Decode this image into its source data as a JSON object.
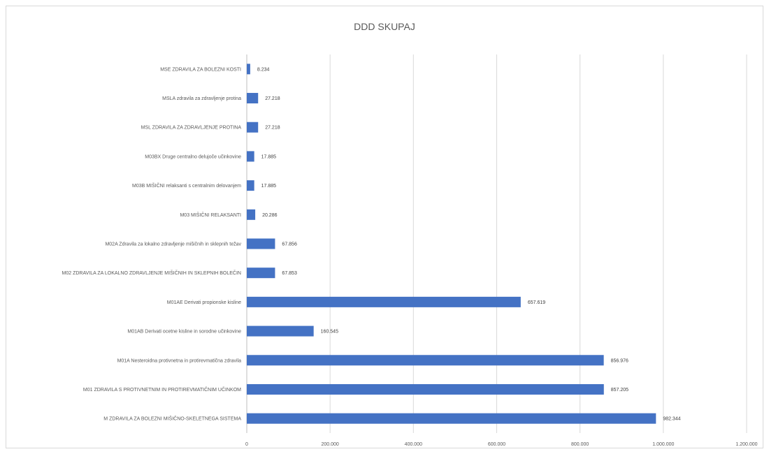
{
  "chart_data": {
    "type": "bar",
    "orientation": "horizontal",
    "title": "DDD SKUPAJ",
    "categories": [
      "MSE ZDRAVILA ZA BOLEZNI KOSTI",
      "MSLA zdravila za zdravljenje protina",
      "MSL ZDRAVILA ZA ZDRAVLJENJE PROTINA",
      "M03BX Druge centralno delujoče učinkovine",
      "M03B MIŠIČNI relaksanti s centralnim delovanjem",
      "M03 MIŠIČNI RELAKSANTI",
      "M02A Zdravila za lokalno zdravljenje mišičnih in sklepnih težav",
      "M02 ZDRAVILA ZA LOKALNO ZDRAVLJENJE MIŠIČNIH IN SKLEPNIH BOLEČIN",
      "M01AE Derivati propionske kisline",
      "M01AB Derivati ocetne kisline in sorodne učinkovine",
      "M01A Nesteroidna protivnetna in protirevmatična zdravila",
      "M01 ZDRAVILA S PROTIVNETNIM IN PROTIREVMATIČNIM UČINKOM",
      "M ZDRAVILA ZA BOLEZNI MIŠIČNO-SKELETNEGA SISTEMA"
    ],
    "values": [
      8.234,
      27.218,
      27.218,
      17.885,
      17.885,
      20.286,
      67.856,
      67.853,
      657.619,
      160.545,
      856.976,
      857.205,
      982.344
    ],
    "value_labels": [
      "8.234",
      "27.218",
      "27.218",
      "17.885",
      "17.885",
      "20.286",
      "67.856",
      "67.853",
      "657.619",
      "160.545",
      "856.976",
      "857.205",
      "982.344"
    ],
    "xlim": [
      0,
      1200
    ],
    "x_ticks": [
      0,
      200,
      400,
      600,
      800,
      1000,
      1200
    ],
    "x_tick_labels": [
      "0",
      "200.000",
      "400.000",
      "600.000",
      "800.000",
      "1.000.000",
      "1.200.000"
    ],
    "grid": true,
    "bar_color": "#4472C4"
  }
}
